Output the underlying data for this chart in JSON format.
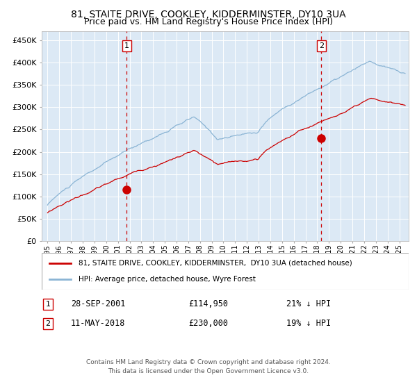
{
  "title": "81, STAITE DRIVE, COOKLEY, KIDDERMINSTER, DY10 3UA",
  "subtitle": "Price paid vs. HM Land Registry's House Price Index (HPI)",
  "title_fontsize": 10,
  "subtitle_fontsize": 9,
  "bg_color": "#dce9f5",
  "grid_color": "#ffffff",
  "hpi_color": "#8ab4d4",
  "price_color": "#cc0000",
  "marker_color": "#cc0000",
  "vline_color": "#cc0000",
  "annotation_box_color": "#cc0000",
  "ylim": [
    0,
    470000
  ],
  "yticks": [
    0,
    50000,
    100000,
    150000,
    200000,
    250000,
    300000,
    350000,
    400000,
    450000
  ],
  "legend_items": [
    "81, STAITE DRIVE, COOKLEY, KIDDERMINSTER,  DY10 3UA (detached house)",
    "HPI: Average price, detached house, Wyre Forest"
  ],
  "sale1_date": "28-SEP-2001",
  "sale1_price": 114950,
  "sale1_label": "1",
  "sale1_x": 2001.75,
  "sale2_date": "11-MAY-2018",
  "sale2_price": 230000,
  "sale2_label": "2",
  "sale2_x": 2018.36,
  "footnote_line1": "Contains HM Land Registry data © Crown copyright and database right 2024.",
  "footnote_line2": "This data is licensed under the Open Government Licence v3.0."
}
